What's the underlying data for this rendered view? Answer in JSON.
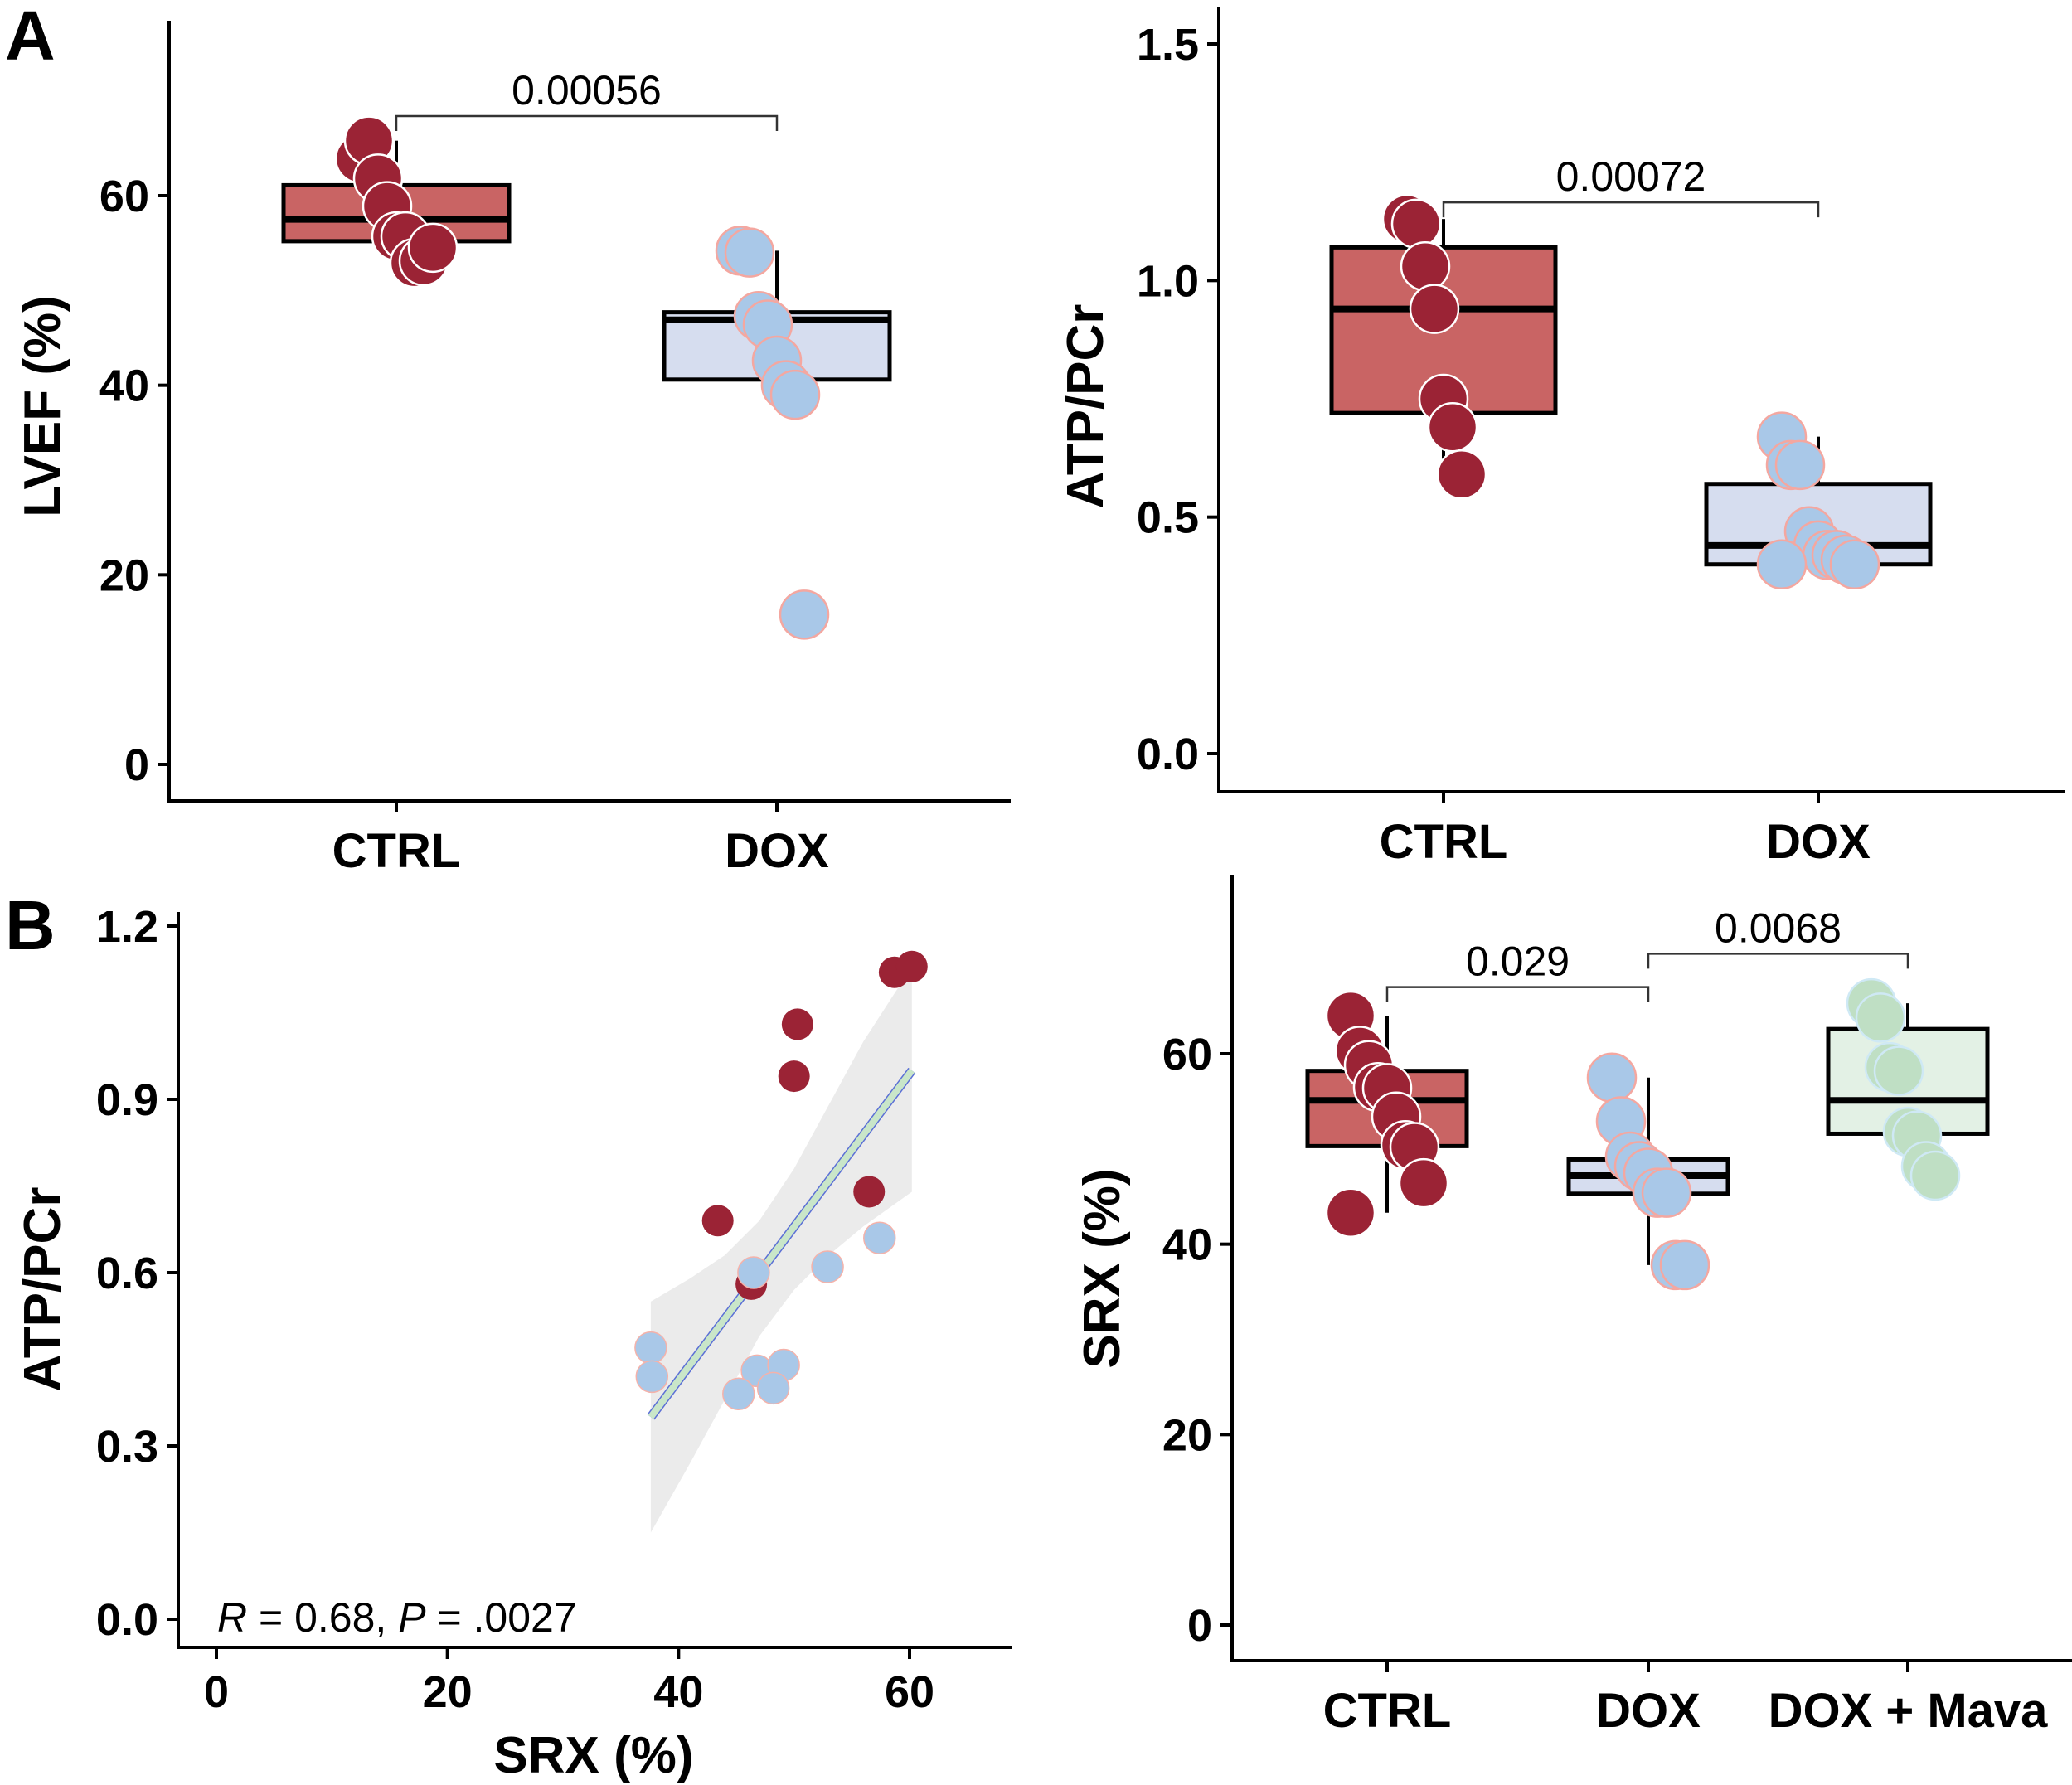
{
  "figure": {
    "panel_labels": [
      "A",
      "B"
    ]
  },
  "colors": {
    "ctrl_box": "#c96464",
    "ctrl_point": "#9b2335",
    "dox_box": "#d6ddef",
    "dox_point": "#a9c8e8",
    "mava_box": "#e3f1e5",
    "mava_point": "#bfdfc4",
    "ci_band": "#ebebeb",
    "fit_line": "#c9e6c9",
    "fit_edge": "#5b6fd6"
  },
  "chart_data": [
    {
      "id": "lvef",
      "type": "box",
      "panel": "A",
      "title": "",
      "xlabel": "",
      "ylabel": "LVEF (%)",
      "ylim": [
        -3,
        75
      ],
      "yticks": [
        0,
        20,
        40,
        60
      ],
      "ytick_labels": [
        "0",
        "20",
        "40",
        "60"
      ],
      "categories": [
        "CTRL",
        "DOX"
      ],
      "groups": [
        {
          "name": "CTRL",
          "color_key": "ctrl",
          "box": {
            "q1": 55.2,
            "median": 57.5,
            "q3": 61.1,
            "whisker_low": 53.0,
            "whisker_high": 65.8
          },
          "points": [
            63.9,
            65.8,
            61.8,
            58.9,
            55.7,
            55.7,
            52.9,
            53.1,
            54.5
          ]
        },
        {
          "name": "DOX",
          "color_key": "dox",
          "box": {
            "q1": 40.6,
            "median": 46.9,
            "q3": 47.7,
            "whisker_low": 39.0,
            "whisker_high": 54.2
          },
          "points": [
            54.2,
            54.0,
            47.3,
            46.4,
            42.6,
            40.0,
            39.0,
            15.8
          ]
        }
      ],
      "comparisons": [
        {
          "from": "CTRL",
          "to": "DOX",
          "level": 68.4,
          "label": "0.00056"
        }
      ],
      "grid": false,
      "legend": "none"
    },
    {
      "id": "atp_pcr_box",
      "type": "box",
      "panel": "A",
      "title": "",
      "xlabel": "",
      "ylabel": "ATP/PCr",
      "ylim": [
        -0.07,
        1.6
      ],
      "yticks": [
        0.0,
        0.5,
        1.0,
        1.5
      ],
      "ytick_labels": [
        "0.0",
        "0.5",
        "1.0",
        "1.5"
      ],
      "categories": [
        "CTRL",
        "DOX"
      ],
      "groups": [
        {
          "name": "CTRL",
          "color_key": "ctrl",
          "box": {
            "q1": 0.72,
            "median": 0.94,
            "q3": 1.07,
            "whisker_low": 0.59,
            "whisker_high": 1.13
          },
          "points": [
            1.13,
            1.12,
            1.03,
            0.94,
            0.75,
            0.69,
            0.59
          ]
        },
        {
          "name": "DOX",
          "color_key": "dox",
          "box": {
            "q1": 0.4,
            "median": 0.44,
            "q3": 0.57,
            "whisker_low": 0.4,
            "whisker_high": 0.67
          },
          "points": [
            0.67,
            0.61,
            0.61,
            0.47,
            0.44,
            0.42,
            0.42,
            0.41,
            0.4,
            0.4
          ]
        }
      ],
      "comparisons": [
        {
          "from": "CTRL",
          "to": "DOX",
          "level": 1.165,
          "label": "0.00072"
        }
      ],
      "grid": false,
      "legend": "none"
    },
    {
      "id": "srx_vs_atp",
      "type": "scatter",
      "panel": "B",
      "title": "",
      "xlabel": "SRX (%)",
      "ylabel": "ATP/PCr",
      "xlim": [
        -4,
        70
      ],
      "ylim": [
        -0.05,
        1.2
      ],
      "xticks": [
        0,
        20,
        40,
        60
      ],
      "xtick_labels": [
        "0",
        "20",
        "40",
        "60"
      ],
      "yticks": [
        0.0,
        0.3,
        0.6,
        0.9,
        1.2
      ],
      "ytick_labels": [
        "0.0",
        "0.3",
        "0.6",
        "0.9",
        "1.2"
      ],
      "series": [
        {
          "name": "CTRL",
          "color_key": "ctrl",
          "x": [
            58.7,
            60.2,
            50.3,
            50.0,
            56.5,
            43.4,
            46.3
          ],
          "y": [
            1.12,
            1.13,
            1.03,
            0.94,
            0.74,
            0.69,
            0.58
          ]
        },
        {
          "name": "DOX",
          "color_key": "dox",
          "x": [
            57.4,
            52.9,
            46.5,
            37.6,
            37.7,
            46.8,
            49.1,
            45.2,
            48.2
          ],
          "y": [
            0.66,
            0.61,
            0.6,
            0.47,
            0.42,
            0.43,
            0.44,
            0.39,
            0.4
          ]
        }
      ],
      "fit": {
        "x": [
          37.6,
          60.2
        ],
        "y": [
          0.35,
          0.95
        ]
      },
      "ci_band": {
        "x": [
          37.6,
          41,
          44,
          47,
          50,
          53,
          56,
          60.2
        ],
        "lower": [
          0.15,
          0.27,
          0.38,
          0.49,
          0.57,
          0.63,
          0.68,
          0.74
        ],
        "upper": [
          0.55,
          0.59,
          0.63,
          0.69,
          0.78,
          0.89,
          1.0,
          1.13
        ]
      },
      "annotation": {
        "r_label": "R",
        "r_text": " = 0.68, ",
        "p_label": "P",
        "p_text": " = .0027"
      },
      "grid": false,
      "legend": "none"
    },
    {
      "id": "srx_box",
      "type": "box",
      "panel": "B",
      "title": "",
      "xlabel": "",
      "ylabel": "SRX (%)",
      "ylim": [
        -4,
        78
      ],
      "yticks": [
        0,
        20,
        40,
        60
      ],
      "ytick_labels": [
        "0",
        "20",
        "40",
        "60"
      ],
      "categories": [
        "CTRL",
        "DOX",
        "DOX + Mava"
      ],
      "groups": [
        {
          "name": "CTRL",
          "color_key": "ctrl",
          "box": {
            "q1": 50.3,
            "median": 55.1,
            "q3": 58.2,
            "whisker_low": 43.3,
            "whisker_high": 64.0
          },
          "points": [
            64.0,
            60.3,
            58.8,
            56.5,
            56.4,
            53.4,
            50.4,
            50.2,
            46.4,
            43.3
          ]
        },
        {
          "name": "DOX",
          "color_key": "dox",
          "box": {
            "q1": 45.3,
            "median": 47.2,
            "q3": 48.9,
            "whisker_low": 37.8,
            "whisker_high": 57.5
          },
          "points": [
            57.5,
            52.9,
            49.2,
            48.2,
            47.5,
            45.4,
            45.4,
            37.8,
            37.8
          ]
        },
        {
          "name": "DOX + Mava",
          "color_key": "mava",
          "box": {
            "q1": 51.6,
            "median": 55.1,
            "q3": 62.6,
            "whisker_low": 47.2,
            "whisker_high": 65.3
          },
          "points": [
            65.3,
            63.8,
            58.6,
            58.2,
            51.8,
            51.4,
            48.2,
            47.2
          ]
        }
      ],
      "comparisons": [
        {
          "from": "CTRL",
          "to": "DOX",
          "level": 67.0,
          "label": "0.029"
        },
        {
          "from": "DOX",
          "to": "DOX + Mava",
          "level": 70.5,
          "label": "0.0068"
        }
      ],
      "grid": false,
      "legend": "none"
    }
  ]
}
